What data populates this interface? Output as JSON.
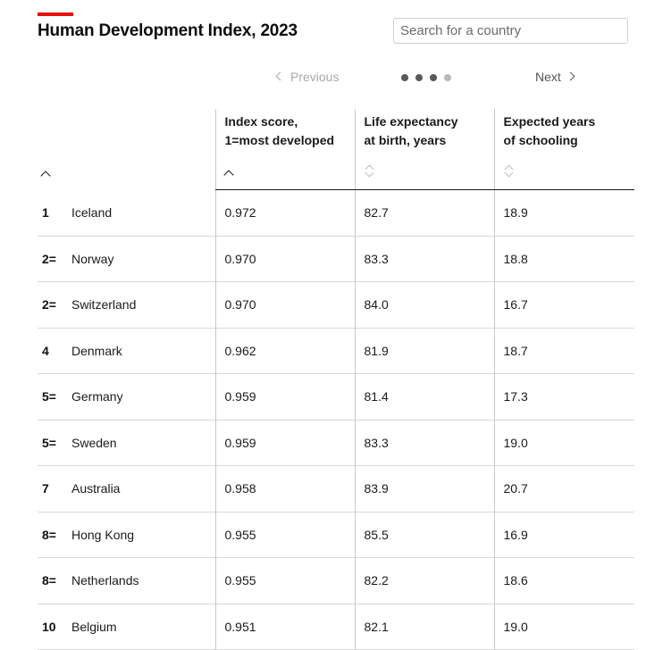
{
  "header": {
    "title": "Human Development Index, 2023",
    "accent_color": "#e3120b"
  },
  "search": {
    "placeholder": "Search for a country",
    "value": ""
  },
  "pagination": {
    "previous_label": "Previous",
    "next_label": "Next",
    "pages": 4,
    "current_page": 1
  },
  "table": {
    "columns": {
      "score": [
        "Index score,",
        "1=most developed"
      ],
      "life": [
        "Life expectancy",
        "at birth, years"
      ],
      "schooling": [
        "Expected years",
        "of schooling"
      ]
    },
    "rows": [
      {
        "rank": "1",
        "country": "Iceland",
        "score": "0.972",
        "life": "82.7",
        "schooling": "18.9"
      },
      {
        "rank": "2=",
        "country": "Norway",
        "score": "0.970",
        "life": "83.3",
        "schooling": "18.8"
      },
      {
        "rank": "2=",
        "country": "Switzerland",
        "score": "0.970",
        "life": "84.0",
        "schooling": "16.7"
      },
      {
        "rank": "4",
        "country": "Denmark",
        "score": "0.962",
        "life": "81.9",
        "schooling": "18.7"
      },
      {
        "rank": "5=",
        "country": "Germany",
        "score": "0.959",
        "life": "81.4",
        "schooling": "17.3"
      },
      {
        "rank": "5=",
        "country": "Sweden",
        "score": "0.959",
        "life": "83.3",
        "schooling": "19.0"
      },
      {
        "rank": "7",
        "country": "Australia",
        "score": "0.958",
        "life": "83.9",
        "schooling": "20.7"
      },
      {
        "rank": "8=",
        "country": "Hong Kong",
        "score": "0.955",
        "life": "85.5",
        "schooling": "16.9"
      },
      {
        "rank": "8=",
        "country": "Netherlands",
        "score": "0.955",
        "life": "82.2",
        "schooling": "18.6"
      },
      {
        "rank": "10",
        "country": "Belgium",
        "score": "0.951",
        "life": "82.1",
        "schooling": "19.0"
      }
    ]
  }
}
